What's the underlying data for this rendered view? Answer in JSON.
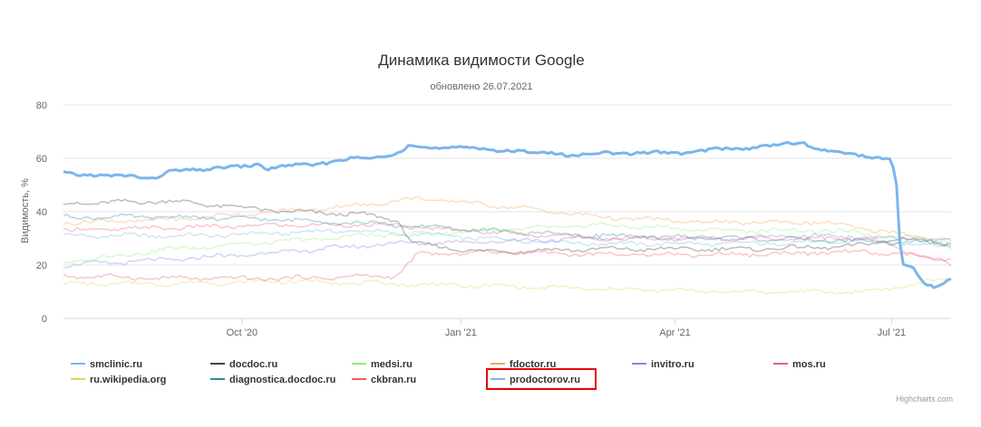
{
  "chart_data": {
    "type": "line",
    "title": "Динамика видимости Google",
    "subtitle": "обновлено 26.07.2021",
    "ylabel": "Видимость, %",
    "xlabel": "",
    "ylim": [
      0,
      80
    ],
    "yticks": [
      0,
      20,
      40,
      60,
      80
    ],
    "x_range": [
      "2020-07-18",
      "2021-07-26"
    ],
    "xticks": [
      {
        "label": "Oct '20",
        "date": "2020-10-01"
      },
      {
        "label": "Jan '21",
        "date": "2021-01-01"
      },
      {
        "label": "Apr '21",
        "date": "2021-04-01"
      },
      {
        "label": "Jul '21",
        "date": "2021-07-01"
      }
    ],
    "grid": true,
    "legend_position": "bottom",
    "credits": "Highcharts.com",
    "highlighted_series": "prodoctorov.ru",
    "series": [
      {
        "name": "smclinic.ru",
        "color": "#7cb5ec",
        "points": [
          [
            "2020-07-18",
            31
          ],
          [
            "2020-09-15",
            31
          ],
          [
            "2020-11-15",
            33
          ],
          [
            "2021-01-10",
            30
          ],
          [
            "2021-03-01",
            28
          ],
          [
            "2021-05-01",
            28
          ],
          [
            "2021-06-20",
            29
          ],
          [
            "2021-07-26",
            27
          ]
        ]
      },
      {
        "name": "docdoc.ru",
        "color": "#434348",
        "points": [
          [
            "2020-07-18",
            43
          ],
          [
            "2020-09-01",
            44
          ],
          [
            "2020-10-20",
            40
          ],
          [
            "2020-11-20",
            39
          ],
          [
            "2020-12-05",
            37
          ],
          [
            "2020-12-12",
            28
          ],
          [
            "2021-01-10",
            25
          ],
          [
            "2021-03-01",
            26
          ],
          [
            "2021-05-01",
            26
          ],
          [
            "2021-06-15",
            27
          ],
          [
            "2021-07-05",
            30
          ],
          [
            "2021-07-26",
            28
          ]
        ]
      },
      {
        "name": "medsi.ru",
        "color": "#90ed7d",
        "points": [
          [
            "2020-07-18",
            21
          ],
          [
            "2020-09-01",
            26
          ],
          [
            "2020-10-20",
            29
          ],
          [
            "2020-11-20",
            31
          ],
          [
            "2021-01-15",
            33
          ],
          [
            "2021-03-01",
            35
          ],
          [
            "2021-04-20",
            33
          ],
          [
            "2021-06-01",
            33
          ],
          [
            "2021-07-01",
            31
          ],
          [
            "2021-07-26",
            29
          ]
        ]
      },
      {
        "name": "fdoctor.ru",
        "color": "#f7a35c",
        "points": [
          [
            "2020-07-18",
            36
          ],
          [
            "2020-09-01",
            37
          ],
          [
            "2020-10-15",
            40
          ],
          [
            "2020-11-15",
            42
          ],
          [
            "2020-12-15",
            45
          ],
          [
            "2021-01-20",
            42
          ],
          [
            "2021-03-01",
            38
          ],
          [
            "2021-04-15",
            36
          ],
          [
            "2021-06-01",
            36
          ],
          [
            "2021-07-26",
            29
          ]
        ]
      },
      {
        "name": "invitro.ru",
        "color": "#8085e9",
        "points": [
          [
            "2020-07-18",
            20
          ],
          [
            "2020-09-01",
            22
          ],
          [
            "2020-10-20",
            25
          ],
          [
            "2020-12-01",
            28
          ],
          [
            "2021-01-20",
            29
          ],
          [
            "2021-03-01",
            30
          ],
          [
            "2021-04-15",
            30
          ],
          [
            "2021-06-01",
            31
          ],
          [
            "2021-07-26",
            29
          ]
        ]
      },
      {
        "name": "mos.ru",
        "color": "#f15c80",
        "points": [
          [
            "2020-07-18",
            33
          ],
          [
            "2020-09-01",
            34
          ],
          [
            "2020-10-20",
            35
          ],
          [
            "2020-12-01",
            35
          ],
          [
            "2021-01-20",
            32
          ],
          [
            "2021-03-01",
            30
          ],
          [
            "2021-05-01",
            30
          ],
          [
            "2021-06-20",
            30
          ],
          [
            "2021-07-26",
            20
          ]
        ]
      },
      {
        "name": "ru.wikipedia.org",
        "color": "#e4d354",
        "points": [
          [
            "2020-07-18",
            13
          ],
          [
            "2020-09-01",
            13
          ],
          [
            "2020-10-20",
            14
          ],
          [
            "2020-12-01",
            13
          ],
          [
            "2021-01-20",
            12
          ],
          [
            "2021-03-01",
            11
          ],
          [
            "2021-05-01",
            10
          ],
          [
            "2021-06-20",
            10
          ],
          [
            "2021-07-05",
            12
          ],
          [
            "2021-07-26",
            15
          ]
        ]
      },
      {
        "name": "diagnostica.docdoc.ru",
        "color": "#2b908f",
        "points": [
          [
            "2020-07-18",
            38
          ],
          [
            "2020-09-01",
            38
          ],
          [
            "2020-10-20",
            37
          ],
          [
            "2020-12-05",
            35
          ],
          [
            "2021-01-10",
            33
          ],
          [
            "2021-03-01",
            31
          ],
          [
            "2021-05-01",
            30
          ],
          [
            "2021-06-20",
            29
          ],
          [
            "2021-07-26",
            28
          ]
        ]
      },
      {
        "name": "ckbran.ru",
        "color": "#f45b5b",
        "points": [
          [
            "2020-07-18",
            16
          ],
          [
            "2020-09-01",
            15
          ],
          [
            "2020-10-20",
            15
          ],
          [
            "2020-12-05",
            16
          ],
          [
            "2020-12-14",
            24
          ],
          [
            "2021-01-20",
            25
          ],
          [
            "2021-03-01",
            24
          ],
          [
            "2021-05-01",
            24
          ],
          [
            "2021-06-20",
            25
          ],
          [
            "2021-07-26",
            22
          ]
        ]
      },
      {
        "name": "prodoctorov.ru",
        "color": "#7cb5ec",
        "points": [
          [
            "2020-07-18",
            55
          ],
          [
            "2020-07-25",
            54
          ],
          [
            "2020-08-05",
            53
          ],
          [
            "2020-08-15",
            54
          ],
          [
            "2020-08-25",
            52
          ],
          [
            "2020-09-01",
            55
          ],
          [
            "2020-09-10",
            56
          ],
          [
            "2020-09-20",
            56
          ],
          [
            "2020-10-01",
            57
          ],
          [
            "2020-10-08",
            58
          ],
          [
            "2020-10-12",
            56
          ],
          [
            "2020-10-20",
            57
          ],
          [
            "2020-11-01",
            58
          ],
          [
            "2020-11-10",
            59
          ],
          [
            "2020-11-20",
            60
          ],
          [
            "2020-12-01",
            61
          ],
          [
            "2020-12-08",
            63
          ],
          [
            "2020-12-10",
            65
          ],
          [
            "2020-12-15",
            64
          ],
          [
            "2021-01-01",
            64
          ],
          [
            "2021-01-20",
            63
          ],
          [
            "2021-02-01",
            62
          ],
          [
            "2021-02-10",
            62
          ],
          [
            "2021-02-20",
            61
          ],
          [
            "2021-03-01",
            62
          ],
          [
            "2021-03-15",
            62
          ],
          [
            "2021-04-01",
            62
          ],
          [
            "2021-04-15",
            63
          ],
          [
            "2021-05-01",
            64
          ],
          [
            "2021-05-15",
            65
          ],
          [
            "2021-05-25",
            66
          ],
          [
            "2021-06-01",
            63
          ],
          [
            "2021-06-10",
            62
          ],
          [
            "2021-06-20",
            61
          ],
          [
            "2021-06-28",
            60
          ],
          [
            "2021-07-01",
            59
          ],
          [
            "2021-07-03",
            50
          ],
          [
            "2021-07-05",
            20
          ],
          [
            "2021-07-10",
            19
          ],
          [
            "2021-07-15",
            13
          ],
          [
            "2021-07-20",
            12
          ],
          [
            "2021-07-26",
            15
          ]
        ]
      }
    ]
  }
}
